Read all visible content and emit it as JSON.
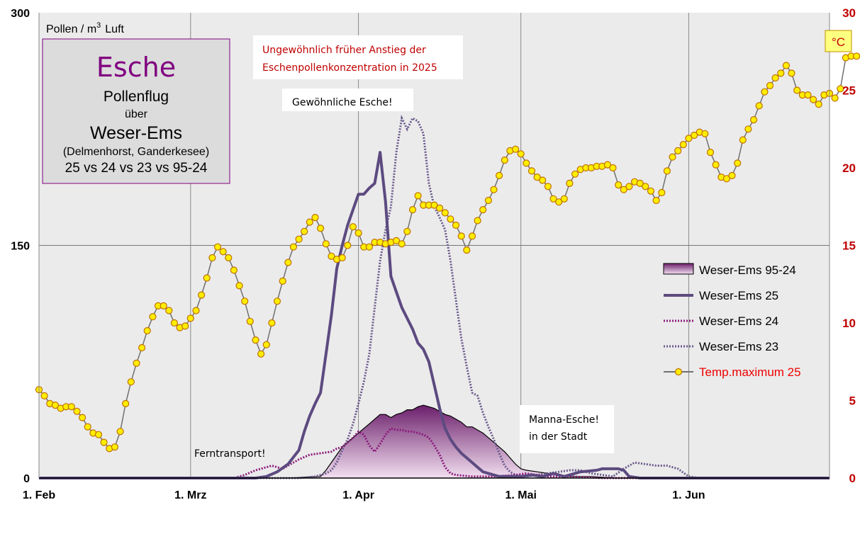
{
  "chart_data": {
    "type": "line",
    "title": {
      "main": "Esche",
      "line2": "Pollenflug",
      "line3": "über",
      "line4": "Weser-Ems",
      "line5": "(Delmenhorst,  Ganderkesee)",
      "line6": "25 vs 24 vs 23 vs 95-24"
    },
    "ylabel_left": "Pollen / m",
    "ylabel_left_sup": "3",
    "ylabel_left_suffix": "Luft",
    "ylabel_right": "°C",
    "ylim_left": [
      0,
      300
    ],
    "ylim_right": [
      0,
      30
    ],
    "left_ticks": [
      "0",
      "150",
      "300"
    ],
    "right_ticks": [
      "0",
      "5",
      "10",
      "15",
      "20",
      "25",
      "30"
    ],
    "x_day_range": [
      0,
      146
    ],
    "x_ticks": [
      {
        "label": "1. Feb",
        "day": 0
      },
      {
        "label": "1. Mrz",
        "day": 28
      },
      {
        "label": "1. Apr",
        "day": 59
      },
      {
        "label": "1. Mai",
        "day": 89
      },
      {
        "label": "1. Jun",
        "day": 120
      }
    ],
    "annotations": {
      "early_rise_line1": "Ungewöhnlich früher Anstieg der",
      "early_rise_line2": "Eschenpollenkonzentration  in 2025",
      "common_ash": "Gewöhnliche Esche!",
      "manna_line1": "Manna-Esche!",
      "manna_line2": "in der Stadt",
      "long_distance": "Ferntransport!"
    },
    "legend": {
      "s95": "Weser-Ems 95-24",
      "s25": "Weser-Ems 25",
      "s24": "Weser-Ems  24",
      "s23": "Weser-Ems 23",
      "temp": "Temp.maximum 25"
    },
    "colors": {
      "s25": "#5c4a80",
      "s24": "#8b1a7a",
      "s23": "#6a5a8c",
      "s95_dark": "#6b1f6b",
      "s95_light": "#f2dff0",
      "temp_line": "#707070",
      "temp_marker": "#ffee00",
      "temp_marker_edge": "#c07000",
      "title": "#800080",
      "plot_bg": "#ebebeb"
    },
    "series": [
      {
        "name": "Weser-Ems 95-24",
        "type": "area",
        "points": [
          [
            0,
            0
          ],
          [
            46,
            0
          ],
          [
            52,
            1
          ],
          [
            53,
            5
          ],
          [
            54,
            10
          ],
          [
            55,
            15
          ],
          [
            56,
            20
          ],
          [
            57,
            23
          ],
          [
            58,
            26
          ],
          [
            59,
            29
          ],
          [
            60,
            32
          ],
          [
            61,
            35
          ],
          [
            62,
            38
          ],
          [
            63,
            41
          ],
          [
            64,
            41
          ],
          [
            65,
            39
          ],
          [
            66,
            41
          ],
          [
            67,
            42
          ],
          [
            68,
            44
          ],
          [
            69,
            44
          ],
          [
            70,
            46
          ],
          [
            71,
            47
          ],
          [
            72,
            46
          ],
          [
            73,
            45
          ],
          [
            74,
            43
          ],
          [
            75,
            41
          ],
          [
            76,
            40
          ],
          [
            77,
            38
          ],
          [
            78,
            36
          ],
          [
            79,
            33
          ],
          [
            80,
            33
          ],
          [
            81,
            31
          ],
          [
            82,
            29
          ],
          [
            83,
            26
          ],
          [
            84,
            23
          ],
          [
            85,
            20
          ],
          [
            86,
            17
          ],
          [
            87,
            13
          ],
          [
            88,
            9
          ],
          [
            89,
            6
          ],
          [
            90,
            5
          ],
          [
            92,
            4
          ],
          [
            94,
            3
          ],
          [
            96,
            2
          ],
          [
            98,
            1
          ],
          [
            102,
            1
          ],
          [
            106,
            0
          ],
          [
            146,
            0
          ]
        ]
      },
      {
        "name": "Weser-Ems 25",
        "type": "line",
        "points": [
          [
            0,
            0
          ],
          [
            38,
            0
          ],
          [
            40,
            0
          ],
          [
            42,
            1
          ],
          [
            44,
            4
          ],
          [
            46,
            9
          ],
          [
            48,
            18
          ],
          [
            49,
            30
          ],
          [
            50,
            40
          ],
          [
            51,
            48
          ],
          [
            52,
            55
          ],
          [
            53,
            80
          ],
          [
            54,
            105
          ],
          [
            55,
            135
          ],
          [
            56,
            150
          ],
          [
            57,
            163
          ],
          [
            58,
            173
          ],
          [
            59,
            183
          ],
          [
            60,
            183
          ],
          [
            61,
            187
          ],
          [
            62,
            190
          ],
          [
            63,
            210
          ],
          [
            64,
            178
          ],
          [
            65,
            130
          ],
          [
            66,
            120
          ],
          [
            67,
            110
          ],
          [
            68,
            103
          ],
          [
            69,
            96
          ],
          [
            70,
            87
          ],
          [
            71,
            83
          ],
          [
            72,
            75
          ],
          [
            73,
            60
          ],
          [
            74,
            45
          ],
          [
            75,
            32
          ],
          [
            76,
            25
          ],
          [
            77,
            20
          ],
          [
            78,
            16
          ],
          [
            79,
            13
          ],
          [
            80,
            10
          ],
          [
            81,
            7
          ],
          [
            82,
            4
          ],
          [
            83,
            3
          ],
          [
            85,
            1
          ],
          [
            87,
            1
          ],
          [
            89,
            1
          ],
          [
            91,
            2
          ],
          [
            93,
            1
          ],
          [
            95,
            3
          ],
          [
            97,
            1
          ],
          [
            100,
            4
          ],
          [
            103,
            5
          ],
          [
            104,
            6
          ],
          [
            107,
            6
          ],
          [
            108,
            5
          ],
          [
            109,
            1
          ],
          [
            111,
            0
          ],
          [
            146,
            0
          ]
        ]
      },
      {
        "name": "Weser-Ems 24",
        "type": "line",
        "dotted": true,
        "points": [
          [
            0,
            0
          ],
          [
            36,
            0
          ],
          [
            38,
            2
          ],
          [
            40,
            5
          ],
          [
            42,
            7
          ],
          [
            43,
            8
          ],
          [
            44,
            7
          ],
          [
            45,
            6
          ],
          [
            46,
            8
          ],
          [
            47,
            10
          ],
          [
            48,
            12
          ],
          [
            50,
            15
          ],
          [
            52,
            16
          ],
          [
            54,
            17
          ],
          [
            55,
            19
          ],
          [
            56,
            20
          ],
          [
            57,
            23
          ],
          [
            58,
            26
          ],
          [
            59,
            30
          ],
          [
            60,
            28
          ],
          [
            61,
            21
          ],
          [
            62,
            17
          ],
          [
            63,
            22
          ],
          [
            64,
            28
          ],
          [
            65,
            32
          ],
          [
            66,
            31
          ],
          [
            67,
            31
          ],
          [
            68,
            30
          ],
          [
            69,
            30
          ],
          [
            70,
            29
          ],
          [
            71,
            28
          ],
          [
            72,
            26
          ],
          [
            73,
            21
          ],
          [
            74,
            15
          ],
          [
            75,
            7
          ],
          [
            76,
            3
          ],
          [
            77,
            2
          ],
          [
            80,
            1
          ],
          [
            84,
            1
          ],
          [
            88,
            2
          ],
          [
            90,
            3
          ],
          [
            92,
            2
          ],
          [
            94,
            1
          ],
          [
            98,
            1
          ],
          [
            104,
            0
          ],
          [
            146,
            0
          ]
        ]
      },
      {
        "name": "Weser-Ems 23",
        "type": "line",
        "dotted": true,
        "points": [
          [
            0,
            0
          ],
          [
            48,
            0
          ],
          [
            51,
            1
          ],
          [
            53,
            3
          ],
          [
            54,
            5
          ],
          [
            55,
            10
          ],
          [
            56,
            18
          ],
          [
            57,
            25
          ],
          [
            58,
            35
          ],
          [
            59,
            48
          ],
          [
            60,
            62
          ],
          [
            61,
            80
          ],
          [
            62,
            110
          ],
          [
            63,
            140
          ],
          [
            64,
            160
          ],
          [
            65,
            175
          ],
          [
            66,
            210
          ],
          [
            67,
            232
          ],
          [
            68,
            225
          ],
          [
            69,
            232
          ],
          [
            70,
            230
          ],
          [
            71,
            222
          ],
          [
            72,
            190
          ],
          [
            73,
            175
          ],
          [
            74,
            168
          ],
          [
            75,
            160
          ],
          [
            76,
            140
          ],
          [
            77,
            115
          ],
          [
            78,
            90
          ],
          [
            79,
            72
          ],
          [
            80,
            55
          ],
          [
            81,
            53
          ],
          [
            82,
            42
          ],
          [
            83,
            33
          ],
          [
            84,
            25
          ],
          [
            85,
            16
          ],
          [
            86,
            8
          ],
          [
            87,
            4
          ],
          [
            88,
            2
          ],
          [
            90,
            1
          ],
          [
            92,
            2
          ],
          [
            94,
            3
          ],
          [
            96,
            4
          ],
          [
            98,
            5
          ],
          [
            100,
            5
          ],
          [
            102,
            3
          ],
          [
            104,
            2
          ],
          [
            106,
            1
          ],
          [
            108,
            6
          ],
          [
            110,
            10
          ],
          [
            112,
            9
          ],
          [
            114,
            8
          ],
          [
            116,
            8
          ],
          [
            118,
            6
          ],
          [
            120,
            1
          ],
          [
            122,
            0
          ],
          [
            146,
            0
          ]
        ]
      },
      {
        "name": "Temp.maximum 25",
        "type": "line",
        "axis": "right",
        "values": [
          5.7,
          5.3,
          4.8,
          4.7,
          4.5,
          4.6,
          4.6,
          4.3,
          3.9,
          3.3,
          2.9,
          2.8,
          2.3,
          1.9,
          2.0,
          3.0,
          4.8,
          6.2,
          7.4,
          8.4,
          9.5,
          10.4,
          11.1,
          11.1,
          10.8,
          10.0,
          9.7,
          9.8,
          10.3,
          10.8,
          11.8,
          12.9,
          14.2,
          14.9,
          14.6,
          14.2,
          13.4,
          12.4,
          11.4,
          10.1,
          8.9,
          8.0,
          8.6,
          10.0,
          11.4,
          12.7,
          13.9,
          14.9,
          15.4,
          15.9,
          16.5,
          16.8,
          16.1,
          15.1,
          14.3,
          14.1,
          14.2,
          15.0,
          16.2,
          15.8,
          14.9,
          14.9,
          15.2,
          15.2,
          15.1,
          15.2,
          15.3,
          15.1,
          15.9,
          17.3,
          18.2,
          17.6,
          17.6,
          17.6,
          17.4,
          17.1,
          16.7,
          16.3,
          15.6,
          14.7,
          15.6,
          16.6,
          17.3,
          17.9,
          18.6,
          19.5,
          20.5,
          21.1,
          21.2,
          20.9,
          20.3,
          19.8,
          19.4,
          19.2,
          18.8,
          18.0,
          17.8,
          18.0,
          19.0,
          19.6,
          19.9,
          20.0,
          20.0,
          20.1,
          20.1,
          20.2,
          20.0,
          18.9,
          18.6,
          18.8,
          19.1,
          19.0,
          18.8,
          18.5,
          17.9,
          18.4,
          19.8,
          20.7,
          21.1,
          21.5,
          21.9,
          22.1,
          22.3,
          22.2,
          21.0,
          20.2,
          19.4,
          19.3,
          19.5,
          20.3,
          21.8,
          22.5,
          23.1,
          24.0,
          24.9,
          25.3,
          25.8,
          26.1,
          26.6,
          26.1,
          25.0,
          24.7,
          24.7,
          24.4,
          24.1,
          24.7,
          24.8,
          24.5,
          25.1,
          27.1,
          27.2,
          27.2
        ]
      }
    ]
  }
}
